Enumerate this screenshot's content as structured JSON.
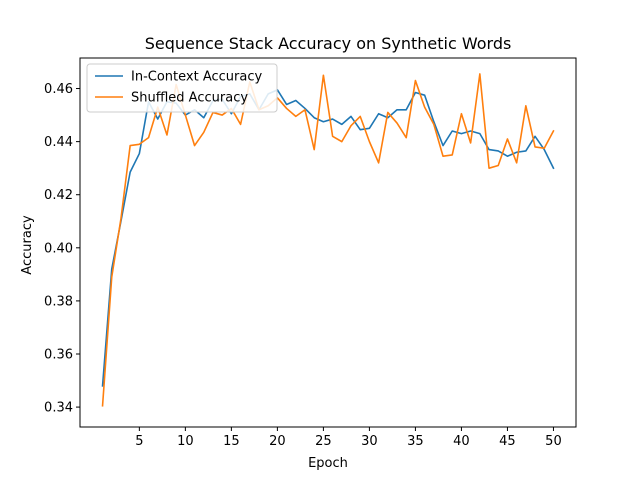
{
  "chart_data": {
    "type": "line",
    "title": "Sequence Stack Accuracy on Synthetic Words",
    "xlabel": "Epoch",
    "ylabel": "Accuracy",
    "xlim": [
      -1.45,
      52.45
    ],
    "ylim": [
      0.3325,
      0.4715
    ],
    "xticks": [
      5,
      10,
      15,
      20,
      25,
      30,
      35,
      40,
      45,
      50
    ],
    "yticks": [
      0.34,
      0.36,
      0.38,
      0.4,
      0.42,
      0.44,
      0.46
    ],
    "ytick_labels": [
      "0.34",
      "0.36",
      "0.38",
      "0.40",
      "0.42",
      "0.44",
      "0.46"
    ],
    "grid": false,
    "legend_position": "top-left",
    "x": [
      1,
      2,
      3,
      4,
      5,
      6,
      7,
      8,
      9,
      10,
      11,
      12,
      13,
      14,
      15,
      16,
      17,
      18,
      19,
      20,
      21,
      22,
      23,
      24,
      25,
      26,
      27,
      28,
      29,
      30,
      31,
      32,
      33,
      34,
      35,
      36,
      37,
      38,
      39,
      40,
      41,
      42,
      43,
      44,
      45,
      46,
      47,
      48,
      49,
      50
    ],
    "series": [
      {
        "name": "In-Context Accuracy",
        "color": "#1f77b4",
        "values": [
          0.348,
          0.392,
          0.41,
          0.4285,
          0.4355,
          0.455,
          0.4485,
          0.455,
          0.4545,
          0.45,
          0.452,
          0.449,
          0.4555,
          0.456,
          0.4505,
          0.457,
          0.458,
          0.452,
          0.458,
          0.4595,
          0.454,
          0.4555,
          0.4525,
          0.449,
          0.4475,
          0.4485,
          0.4465,
          0.4495,
          0.4445,
          0.445,
          0.4505,
          0.449,
          0.452,
          0.452,
          0.4585,
          0.4575,
          0.4475,
          0.4385,
          0.444,
          0.443,
          0.444,
          0.443,
          0.437,
          0.4365,
          0.4345,
          0.436,
          0.4365,
          0.442,
          0.437,
          0.43
        ]
      },
      {
        "name": "Shuffled Accuracy",
        "color": "#ff7f0e",
        "values": [
          0.3405,
          0.389,
          0.411,
          0.4385,
          0.439,
          0.4415,
          0.453,
          0.4425,
          0.4615,
          0.45,
          0.4385,
          0.4435,
          0.451,
          0.45,
          0.4525,
          0.4465,
          0.4625,
          0.452,
          0.4535,
          0.4565,
          0.4525,
          0.4495,
          0.452,
          0.437,
          0.465,
          0.442,
          0.44,
          0.446,
          0.4495,
          0.44,
          0.432,
          0.451,
          0.447,
          0.4415,
          0.463,
          0.453,
          0.4465,
          0.4345,
          0.435,
          0.4505,
          0.4395,
          0.4655,
          0.43,
          0.431,
          0.441,
          0.432,
          0.4535,
          0.438,
          0.4375,
          0.444
        ]
      }
    ]
  }
}
